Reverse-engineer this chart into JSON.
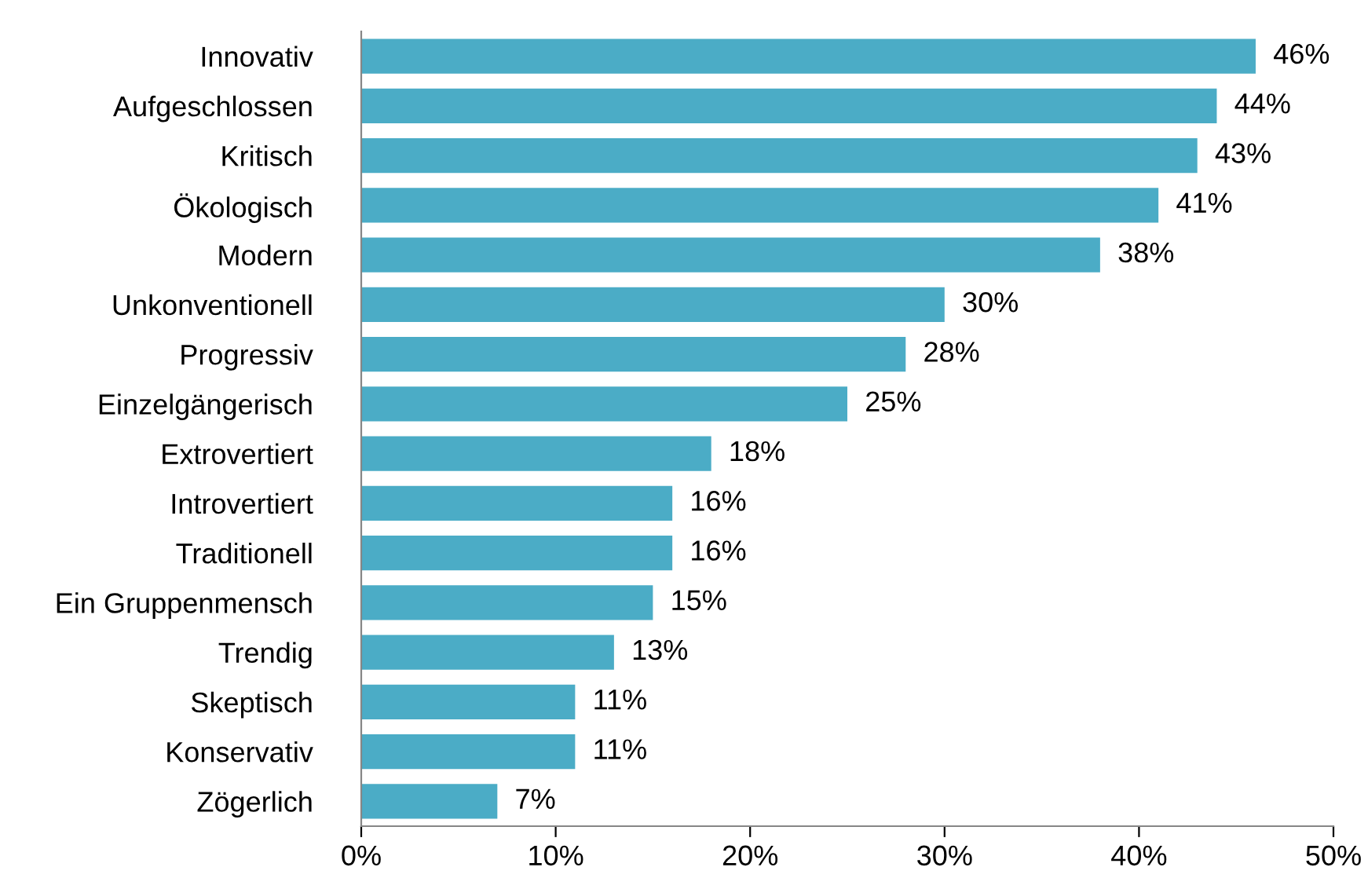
{
  "chart_data": {
    "type": "bar",
    "orientation": "horizontal",
    "categories": [
      "Innovativ",
      "Aufgeschlossen",
      "Kritisch",
      "Ökologisch",
      "Modern",
      "Unkonventionell",
      "Progressiv",
      "Einzelgängerisch",
      "Extrovertiert",
      "Introvertiert",
      "Traditionell",
      "Ein Gruppenmensch",
      "Trendig",
      "Skeptisch",
      "Konservativ",
      "Zögerlich"
    ],
    "values": [
      46,
      44,
      43,
      41,
      38,
      30,
      28,
      25,
      18,
      16,
      16,
      15,
      13,
      11,
      11,
      7
    ],
    "value_labels": [
      "46%",
      "44%",
      "43%",
      "41%",
      "38%",
      "30%",
      "28%",
      "25%",
      "18%",
      "16%",
      "16%",
      "15%",
      "13%",
      "11%",
      "11%",
      "7%"
    ],
    "color": "#4bacc6",
    "xlim": [
      0,
      50
    ],
    "xticks": [
      {
        "value": 0,
        "label": "0%"
      },
      {
        "value": 10,
        "label": "10%"
      },
      {
        "value": 20,
        "label": "20%"
      },
      {
        "value": 30,
        "label": "30%"
      },
      {
        "value": 40,
        "label": "40%"
      },
      {
        "value": 50,
        "label": "50%"
      }
    ],
    "grid": false,
    "legend": false
  }
}
